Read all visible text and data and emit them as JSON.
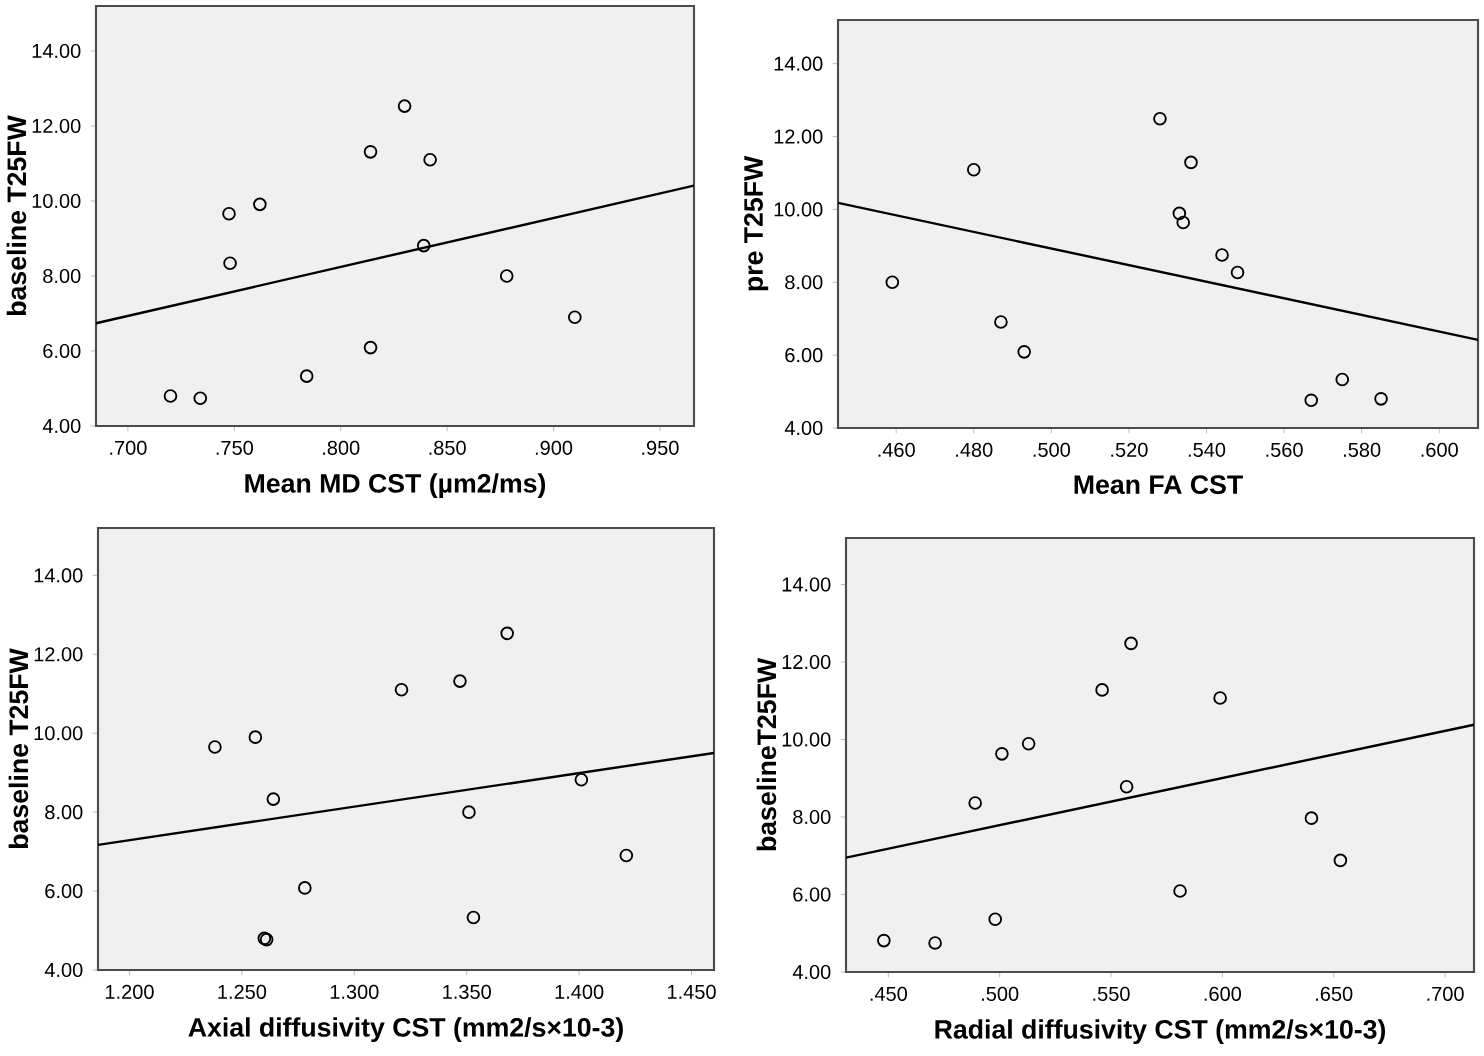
{
  "chart_data": [
    {
      "type": "scatter",
      "xlabel": "Mean MD CST   (µm2/ms)",
      "ylabel": "baseline T25FW",
      "grid": false,
      "xlim": [
        0.685,
        0.966
      ],
      "ylim": [
        4,
        15.2
      ],
      "xticks": [
        {
          "value": 0.7,
          "label": ".700"
        },
        {
          "value": 0.75,
          "label": ".750"
        },
        {
          "value": 0.8,
          "label": ".800"
        },
        {
          "value": 0.85,
          "label": ".850"
        },
        {
          "value": 0.9,
          "label": ".900"
        },
        {
          "value": 0.95,
          "label": ".950"
        }
      ],
      "yticks": [
        {
          "value": 4,
          "label": "4.00"
        },
        {
          "value": 6,
          "label": "6.00"
        },
        {
          "value": 8,
          "label": "8.00"
        },
        {
          "value": 10,
          "label": "10.00"
        },
        {
          "value": 12,
          "label": "12.00"
        },
        {
          "value": 14,
          "label": "14.00"
        }
      ],
      "series": [
        {
          "marker": "circle",
          "color": "#000000",
          "x": [
            0.72,
            0.734,
            0.7475,
            0.748,
            0.762,
            0.784,
            0.814,
            0.814,
            0.83,
            0.839,
            0.842,
            0.878,
            0.91
          ],
          "values": [
            4.8,
            4.74,
            9.66,
            8.34,
            9.91,
            5.33,
            11.31,
            6.09,
            12.53,
            8.81,
            11.1,
            8.0,
            6.9
          ]
        },
        {
          "type": "line",
          "color": "#000000",
          "x": [
            0.685,
            0.966
          ],
          "values": [
            6.74,
            10.41
          ]
        }
      ]
    },
    {
      "type": "scatter",
      "xlabel": "Mean FA CST",
      "ylabel": "pre T25FW",
      "grid": false,
      "xlim": [
        0.445,
        0.61
      ],
      "ylim": [
        4,
        15.2
      ],
      "xticks": [
        {
          "value": 0.46,
          "label": ".460"
        },
        {
          "value": 0.48,
          "label": ".480"
        },
        {
          "value": 0.5,
          "label": ".500"
        },
        {
          "value": 0.52,
          "label": ".520"
        },
        {
          "value": 0.54,
          "label": ".540"
        },
        {
          "value": 0.56,
          "label": ".560"
        },
        {
          "value": 0.58,
          "label": ".580"
        },
        {
          "value": 0.6,
          "label": ".600"
        }
      ],
      "yticks": [
        {
          "value": 4,
          "label": "4.00"
        },
        {
          "value": 6,
          "label": "6.00"
        },
        {
          "value": 8,
          "label": "8.00"
        },
        {
          "value": 10,
          "label": "10.00"
        },
        {
          "value": 12,
          "label": "12.00"
        },
        {
          "value": 14,
          "label": "14.00"
        }
      ],
      "series": [
        {
          "marker": "circle",
          "color": "#000000",
          "x": [
            0.459,
            0.48,
            0.487,
            0.493,
            0.528,
            0.533,
            0.534,
            0.536,
            0.544,
            0.548,
            0.567,
            0.575,
            0.585
          ],
          "values": [
            8.0,
            11.09,
            6.91,
            6.09,
            12.49,
            9.89,
            9.64,
            11.29,
            8.75,
            8.27,
            4.76,
            5.33,
            4.8
          ]
        },
        {
          "type": "line",
          "color": "#000000",
          "x": [
            0.445,
            0.61
          ],
          "values": [
            10.18,
            6.42
          ]
        }
      ]
    },
    {
      "type": "scatter",
      "xlabel": "Axial diffusivity CST (mm2/s×10-3)",
      "ylabel": "baseline  T25FW",
      "grid": false,
      "xlim": [
        1.186,
        1.46
      ],
      "ylim": [
        4,
        15.2
      ],
      "xticks": [
        {
          "value": 1.2,
          "label": "1.200"
        },
        {
          "value": 1.25,
          "label": "1.250"
        },
        {
          "value": 1.3,
          "label": "1.300"
        },
        {
          "value": 1.35,
          "label": "1.350"
        },
        {
          "value": 1.4,
          "label": "1.400"
        },
        {
          "value": 1.45,
          "label": "1.450"
        }
      ],
      "yticks": [
        {
          "value": 4,
          "label": "4.00"
        },
        {
          "value": 6,
          "label": "6.00"
        },
        {
          "value": 8,
          "label": "8.00"
        },
        {
          "value": 10,
          "label": "10.00"
        },
        {
          "value": 12,
          "label": "12.00"
        },
        {
          "value": 14,
          "label": "14.00"
        }
      ],
      "series": [
        {
          "marker": "circle",
          "color": "#000000",
          "x": [
            1.238,
            1.256,
            1.264,
            1.278,
            1.26,
            1.261,
            1.321,
            1.347,
            1.368,
            1.351,
            1.353,
            1.401,
            1.421
          ],
          "values": [
            9.65,
            9.9,
            8.33,
            6.08,
            4.8,
            4.77,
            11.1,
            11.32,
            12.53,
            8.0,
            5.33,
            8.82,
            6.9
          ]
        },
        {
          "type": "line",
          "color": "#000000",
          "x": [
            1.186,
            1.46
          ],
          "values": [
            7.17,
            9.5
          ]
        }
      ]
    },
    {
      "type": "scatter",
      "xlabel": "Radial diffusivity CST (mm2/s×10-3)",
      "ylabel": "baselineT25FW",
      "grid": false,
      "xlim": [
        0.431,
        0.713
      ],
      "ylim": [
        4,
        15.2
      ],
      "xticks": [
        {
          "value": 0.45,
          "label": ".450"
        },
        {
          "value": 0.5,
          "label": ".500"
        },
        {
          "value": 0.55,
          "label": ".550"
        },
        {
          "value": 0.6,
          "label": ".600"
        },
        {
          "value": 0.65,
          "label": ".650"
        },
        {
          "value": 0.7,
          "label": ".700"
        }
      ],
      "yticks": [
        {
          "value": 4,
          "label": "4.00"
        },
        {
          "value": 6,
          "label": "6.00"
        },
        {
          "value": 8,
          "label": "8.00"
        },
        {
          "value": 10,
          "label": "10.00"
        },
        {
          "value": 12,
          "label": "12.00"
        },
        {
          "value": 14,
          "label": "14.00"
        }
      ],
      "series": [
        {
          "marker": "circle",
          "color": "#000000",
          "x": [
            0.448,
            0.471,
            0.489,
            0.498,
            0.501,
            0.513,
            0.546,
            0.557,
            0.559,
            0.581,
            0.599,
            0.64,
            0.653
          ],
          "values": [
            4.81,
            4.75,
            8.36,
            5.36,
            9.63,
            9.89,
            11.28,
            8.78,
            12.48,
            6.09,
            11.07,
            7.97,
            6.88
          ]
        },
        {
          "type": "line",
          "color": "#000000",
          "x": [
            0.431,
            0.713
          ],
          "values": [
            6.95,
            10.38
          ]
        }
      ]
    }
  ]
}
